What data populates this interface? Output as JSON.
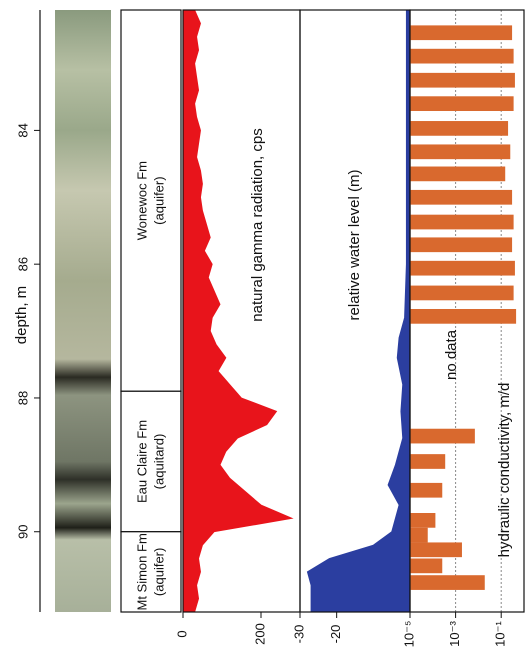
{
  "depth_axis": {
    "label": "depth, m",
    "ylim": [
      82.2,
      91.2
    ],
    "yticks": [
      84,
      86,
      88,
      90
    ]
  },
  "formations": [
    {
      "name": "Wonewoc Fm",
      "note": "(aquifer)",
      "top": 82.2,
      "bottom": 87.9
    },
    {
      "name": "Eau Claire Fm",
      "note": "(aquitard)",
      "top": 87.9,
      "bottom": 90.0
    },
    {
      "name": "Mt Simon Fm",
      "note": "(aquifer)",
      "top": 90.0,
      "bottom": 91.2
    }
  ],
  "chart_data": [
    {
      "type": "area",
      "title": "natural gamma radiation, cps",
      "color": "#e8141b",
      "depths": [
        82.2,
        82.4,
        82.6,
        82.8,
        83.0,
        83.2,
        83.4,
        83.6,
        83.8,
        84.0,
        84.2,
        84.4,
        84.6,
        84.8,
        85.0,
        85.2,
        85.4,
        85.6,
        85.8,
        86.0,
        86.2,
        86.4,
        86.6,
        86.8,
        87.0,
        87.2,
        87.4,
        87.6,
        87.8,
        88.0,
        88.2,
        88.4,
        88.6,
        88.8,
        89.0,
        89.2,
        89.4,
        89.6,
        89.8,
        90.0,
        90.2,
        90.4,
        90.6,
        90.8,
        91.0,
        91.2
      ],
      "values": [
        30,
        45,
        35,
        40,
        30,
        35,
        40,
        30,
        35,
        45,
        40,
        35,
        45,
        50,
        45,
        50,
        60,
        70,
        55,
        75,
        65,
        80,
        95,
        75,
        70,
        85,
        110,
        90,
        120,
        150,
        240,
        215,
        140,
        110,
        95,
        120,
        160,
        200,
        280,
        80,
        50,
        40,
        45,
        35,
        40,
        30
      ],
      "xlim": [
        0,
        300
      ],
      "xticks": [
        0,
        200
      ]
    },
    {
      "type": "area",
      "title": "relative water level (m)",
      "color": "#2b3ea0",
      "depths": [
        82.2,
        84.0,
        86.0,
        86.8,
        87.1,
        87.4,
        87.8,
        88.2,
        88.6,
        89.0,
        89.3,
        89.6,
        90.0,
        90.2,
        90.4,
        90.6,
        90.8,
        91.2
      ],
      "values": [
        -1,
        -1,
        -1,
        -1.5,
        -3,
        -3.5,
        -2,
        -2.5,
        -2,
        -4,
        -6,
        -3,
        -5,
        -10,
        -22,
        -28,
        -27,
        -27
      ],
      "xlim": [
        -30,
        0
      ],
      "xticks": [
        -30,
        -20
      ]
    },
    {
      "type": "bar",
      "title": "hydraulic conductivity, m/d",
      "annotation": "no data",
      "color": "#d9692e",
      "log": true,
      "depths": [
        82.54,
        82.89,
        83.25,
        83.6,
        83.97,
        84.32,
        84.65,
        85.0,
        85.37,
        85.71,
        86.06,
        86.43,
        86.78,
        88.57,
        88.95,
        89.38,
        89.83,
        90.05,
        90.27,
        90.51,
        90.76
      ],
      "values": [
        0.3,
        0.35,
        0.4,
        0.35,
        0.2,
        0.25,
        0.15,
        0.3,
        0.35,
        0.3,
        0.4,
        0.35,
        0.45,
        0.007,
        0.00035,
        0.00026,
        0.00013,
        6e-05,
        0.0019,
        0.00026,
        0.019
      ],
      "xlim": [
        1e-05,
        1
      ],
      "xticks": [
        {
          "value": 1e-05,
          "label": "10⁻⁵"
        },
        {
          "value": 0.001,
          "label": "10⁻³"
        },
        {
          "value": 0.1,
          "label": "10⁻¹"
        }
      ],
      "grid": true
    }
  ]
}
